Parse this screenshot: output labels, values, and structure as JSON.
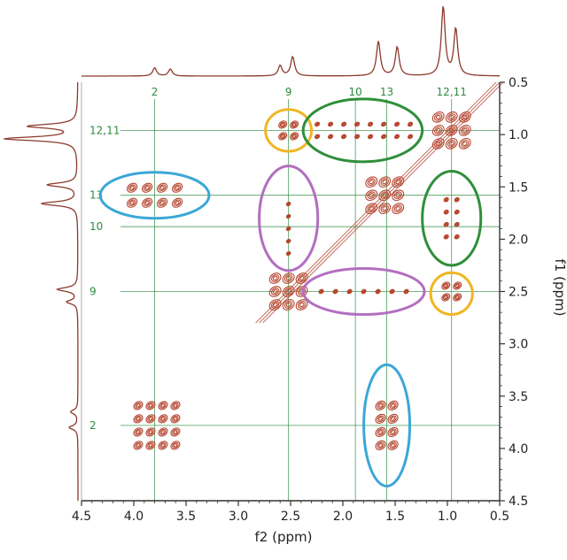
{
  "chart_data": {
    "type": "scatter",
    "subtype": "2D NMR COSY contour plot with 1D projections",
    "xlabel": "f2 (ppm)",
    "ylabel": "f1 (ppm)",
    "x_axis_reversed": true,
    "y_axis_reversed": true,
    "xlim": [
      4.5,
      0.5
    ],
    "ylim": [
      0.5,
      4.5
    ],
    "x_ticks": [
      "4.5",
      "4.0",
      "3.5",
      "3.0",
      "2.5",
      "2.0",
      "1.5",
      "1.0",
      "0.5"
    ],
    "y_ticks": [
      "0.5",
      "1.0",
      "1.5",
      "2.0",
      "2.5",
      "3.0",
      "3.5",
      "4.0",
      "4.5"
    ],
    "grid": false,
    "colors": {
      "contour": "#b5452f",
      "projection": "#8b3a2b",
      "guide": "#2e8b3f",
      "blue": "#3aa7d6",
      "green": "#2f8f3a",
      "magenta": "#b36ec0",
      "gold": "#f0b623"
    },
    "top_labels": [
      {
        "text": "2",
        "ppm": 3.8
      },
      {
        "text": "9",
        "ppm": 2.52
      },
      {
        "text": "10",
        "ppm": 1.88
      },
      {
        "text": "13",
        "ppm": 1.58
      },
      {
        "text": "12,11",
        "ppm": 0.96
      }
    ],
    "side_labels": [
      {
        "text": "12,11",
        "ppm": 0.96
      },
      {
        "text": "13",
        "ppm": 1.58
      },
      {
        "text": "10",
        "ppm": 1.88
      },
      {
        "text": "9",
        "ppm": 2.5
      },
      {
        "text": "2",
        "ppm": 3.78
      }
    ],
    "cross_peaks": [
      {
        "x": 3.8,
        "y": 1.58,
        "highlight": "blue"
      },
      {
        "x": 1.58,
        "y": 3.78,
        "highlight": "blue"
      },
      {
        "x": 2.52,
        "y": 0.96,
        "highlight": "gold"
      },
      {
        "x": 0.96,
        "y": 2.5,
        "highlight": "gold"
      },
      {
        "x": 1.8,
        "y": 0.96,
        "highlight": "green"
      },
      {
        "x": 0.96,
        "y": 1.8,
        "highlight": "green"
      },
      {
        "x": 2.52,
        "y": 1.9,
        "highlight": "magenta"
      },
      {
        "x": 1.8,
        "y": 2.5,
        "highlight": "magenta"
      }
    ],
    "diagonal_peaks": [
      {
        "x": 3.78,
        "y": 3.78
      },
      {
        "x": 2.52,
        "y": 2.5
      },
      {
        "x": 1.6,
        "y": 1.58
      },
      {
        "x": 0.96,
        "y": 0.96
      }
    ],
    "highlight_ellipses": [
      {
        "color": "blue",
        "cx": 3.8,
        "cy": 1.58,
        "rx": 0.52,
        "ry": 0.22
      },
      {
        "color": "blue",
        "cx": 1.58,
        "cy": 3.78,
        "rx": 0.22,
        "ry": 0.58
      },
      {
        "color": "gold",
        "cx": 2.52,
        "cy": 0.96,
        "rx": 0.22,
        "ry": 0.2
      },
      {
        "color": "gold",
        "cx": 0.96,
        "cy": 2.52,
        "rx": 0.2,
        "ry": 0.2
      },
      {
        "color": "green",
        "cx": 1.81,
        "cy": 0.96,
        "rx": 0.57,
        "ry": 0.3
      },
      {
        "color": "green",
        "cx": 0.96,
        "cy": 1.8,
        "rx": 0.28,
        "ry": 0.45
      },
      {
        "color": "magenta",
        "cx": 2.52,
        "cy": 1.8,
        "rx": 0.28,
        "ry": 0.5
      },
      {
        "color": "magenta",
        "cx": 1.8,
        "cy": 2.5,
        "rx": 0.58,
        "ry": 0.22
      }
    ],
    "projection_peaks": [
      {
        "ppm": 3.8,
        "height": 0.12
      },
      {
        "ppm": 3.65,
        "height": 0.1
      },
      {
        "ppm": 2.6,
        "height": 0.15
      },
      {
        "ppm": 2.48,
        "height": 0.28
      },
      {
        "ppm": 1.66,
        "height": 0.5
      },
      {
        "ppm": 1.48,
        "height": 0.42
      },
      {
        "ppm": 1.04,
        "height": 1.0
      },
      {
        "ppm": 0.92,
        "height": 0.68
      }
    ]
  }
}
